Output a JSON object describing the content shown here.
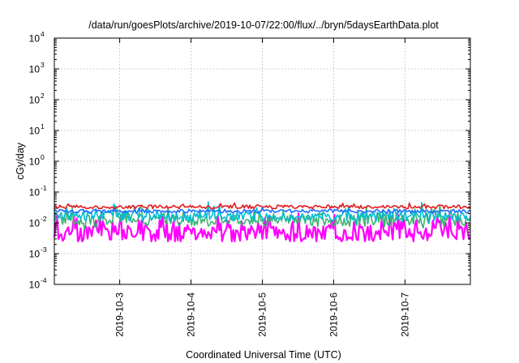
{
  "chart_data": {
    "type": "line",
    "title": "/data/run/goesPlots/archive/2019-10-07/22:00/flux/../bryn/5daysEarthData.plot",
    "xlabel": "Coordinated Universal Time (UTC)",
    "ylabel": "cGy/day",
    "yscale": "log",
    "ylim": [
      0.0001,
      10000
    ],
    "xlim": [
      "2019-10-02 02:00",
      "2019-10-07 22:00"
    ],
    "ytick_exponents": [
      "-4",
      "-3",
      "-2",
      "-1",
      "0",
      "1",
      "2",
      "3",
      "4"
    ],
    "xticks": [
      "2019-10-3",
      "2019-10-4",
      "2019-10-5",
      "2019-10-6",
      "2019-10-7"
    ],
    "grid": true,
    "legend": "none",
    "series": [
      {
        "color": "#ff00ff",
        "base": 0.0045,
        "spread": 0.55,
        "burst": 0.35
      },
      {
        "color": "#3cb371",
        "base": 0.012,
        "spread": 0.35,
        "burst": 0.3
      },
      {
        "color": "#00bcd4",
        "base": 0.016,
        "spread": 0.3,
        "burst": 0.2
      },
      {
        "color": "#e41a1c",
        "base": 0.033,
        "spread": 0.12,
        "burst": 0.05
      },
      {
        "color": "#1e6fff",
        "base": 0.024,
        "spread": 0.12,
        "burst": 0.03
      }
    ]
  }
}
